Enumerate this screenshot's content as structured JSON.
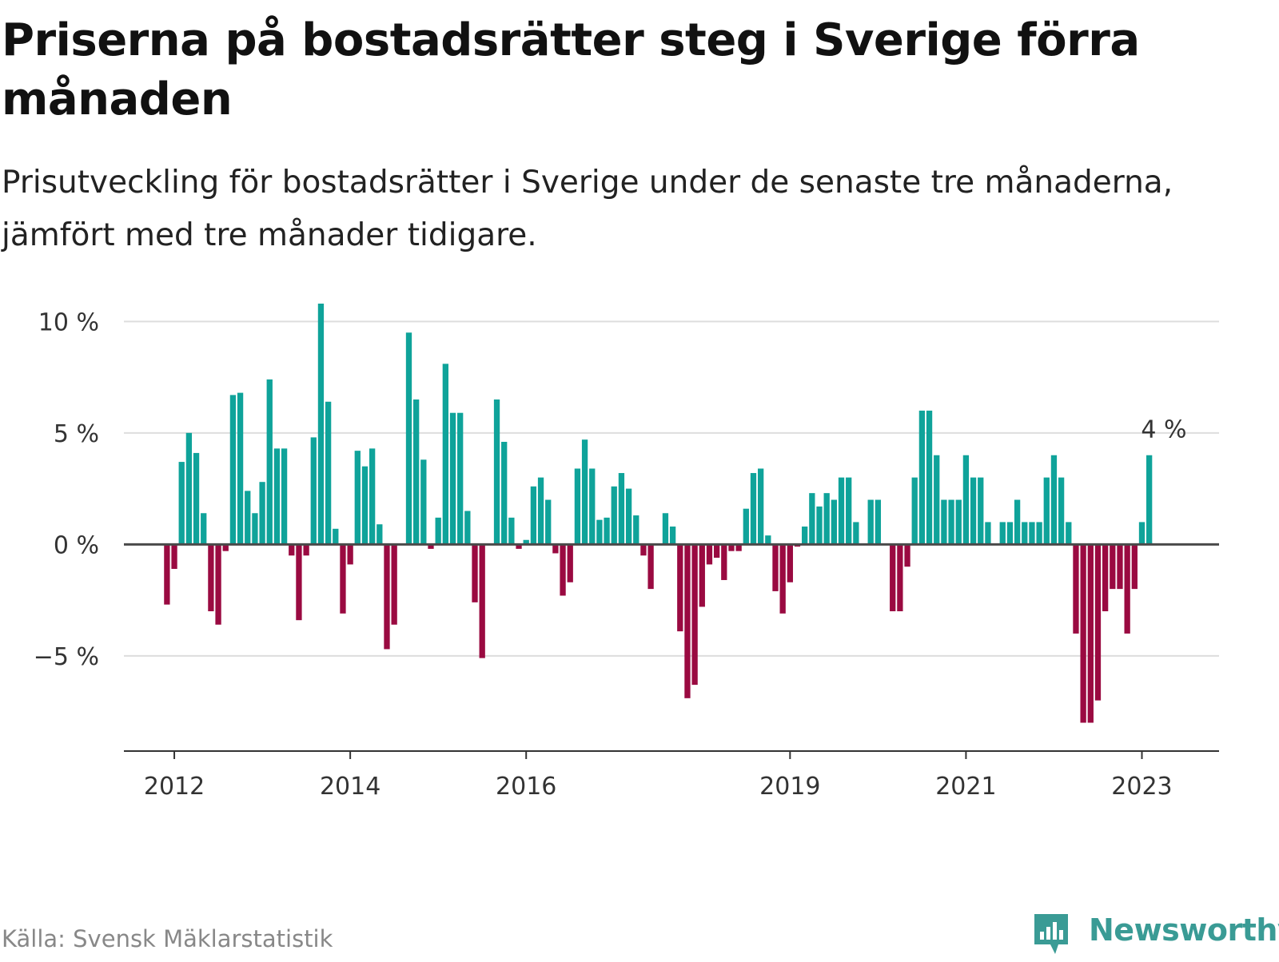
{
  "header": {
    "title": "Priserna på bostadsrätter steg i Sverige förra månaden",
    "subtitle": "Prisutveckling för bostadsrätter i Sverige under de senaste tre månaderna, jämfört med tre månader tidigare."
  },
  "footer": {
    "source": "Källa: Svensk Mäklarstatistik",
    "brand": "Newsworthy"
  },
  "colors": {
    "positive": "#0fa39a",
    "negative": "#9a0a41",
    "brand": "#3a9b95"
  },
  "chart_data": {
    "type": "bar",
    "title": "Priserna på bostadsrätter steg i Sverige förra månaden",
    "subtitle": "Prisutveckling för bostadsrätter i Sverige under de senaste tre månaderna, jämfört med tre månader tidigare.",
    "x_start": "2011-05",
    "x_end": "2023-04",
    "x_ticks": [
      "2012",
      "2014",
      "2016",
      "2019",
      "2021",
      "2023"
    ],
    "y_ticks": [
      "10 %",
      "5 %",
      "0 %",
      "−5 %"
    ],
    "y_tick_values": [
      10,
      5,
      0,
      -5
    ],
    "ylim": [
      -9.2,
      10.8
    ],
    "grid": true,
    "annotation": "4 %",
    "values": [
      0.0,
      0.0,
      0.0,
      0.0,
      0.0,
      0.0,
      0.0,
      -2.7,
      -1.1,
      3.7,
      5.0,
      4.1,
      1.4,
      -3.0,
      -3.6,
      -0.3,
      6.7,
      6.8,
      2.4,
      1.4,
      2.8,
      7.4,
      4.3,
      4.3,
      -0.5,
      -3.4,
      -0.5,
      4.8,
      10.8,
      6.4,
      0.7,
      -3.1,
      -0.9,
      4.2,
      3.5,
      4.3,
      0.9,
      -4.7,
      -3.6,
      0.0,
      9.5,
      6.5,
      3.8,
      -0.2,
      1.2,
      8.1,
      5.9,
      5.9,
      1.5,
      -2.6,
      -5.1,
      0.0,
      6.5,
      4.6,
      1.2,
      -0.2,
      0.2,
      2.6,
      3.0,
      2.0,
      -0.4,
      -2.3,
      -1.7,
      3.4,
      4.7,
      3.4,
      1.1,
      1.2,
      2.6,
      3.2,
      2.5,
      1.3,
      -0.5,
      -2.0,
      0.0,
      1.4,
      0.8,
      -3.9,
      -6.9,
      -6.3,
      -2.8,
      -0.9,
      -0.6,
      -1.6,
      -0.3,
      -0.3,
      1.6,
      3.2,
      3.4,
      0.4,
      -2.1,
      -3.1,
      -1.7,
      -0.1,
      0.8,
      2.3,
      1.7,
      2.3,
      2.0,
      3.0,
      3.0,
      1.0,
      0.0,
      2.0,
      2.0,
      0.0,
      -3.0,
      -3.0,
      -1.0,
      3.0,
      6.0,
      6.0,
      4.0,
      2.0,
      2.0,
      2.0,
      4.0,
      3.0,
      3.0,
      1.0,
      0.0,
      1.0,
      1.0,
      2.0,
      1.0,
      1.0,
      1.0,
      3.0,
      4.0,
      3.0,
      1.0,
      -4.0,
      -8.0,
      -8.0,
      -7.0,
      -3.0,
      -2.0,
      -2.0,
      -4.0,
      -2.0,
      1.0,
      4.0
    ]
  }
}
